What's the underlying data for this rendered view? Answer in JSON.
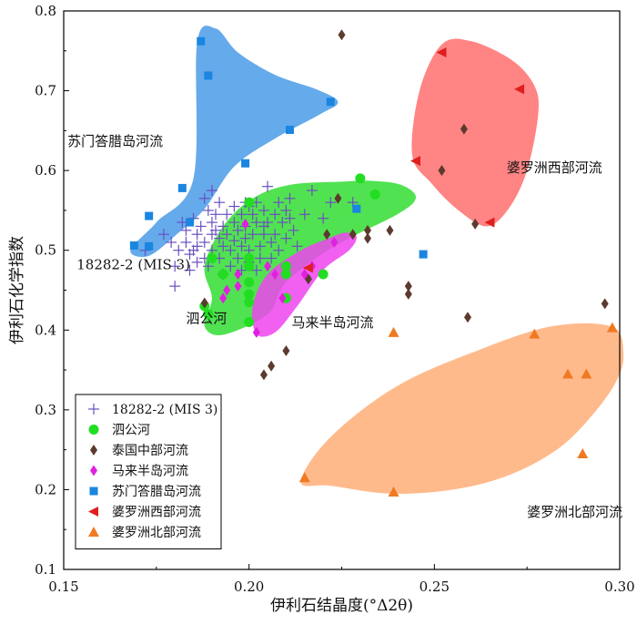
{
  "chart_data": {
    "type": "scatter",
    "title": "",
    "xlabel": "伊利石结晶度(°Δ2θ)",
    "ylabel": "伊利石化学指数",
    "xlim": [
      0.15,
      0.3
    ],
    "ylim": [
      0.1,
      0.8
    ],
    "x_ticks": [
      "0.15",
      "0.20",
      "0.25",
      "0.30"
    ],
    "y_ticks": [
      "0.1",
      "0.2",
      "0.3",
      "0.4",
      "0.5",
      "0.6",
      "0.7",
      "0.8"
    ],
    "grid": false,
    "legend_position": "bottom-left",
    "regions": [
      {
        "name": "苏门答腊岛河流",
        "label": "苏门答腊岛河流",
        "color": "#4a9be8",
        "label_pos": [
          0.151,
          0.631
        ],
        "polygon": [
          [
            0.168,
            0.5
          ],
          [
            0.175,
            0.535
          ],
          [
            0.185,
            0.59
          ],
          [
            0.186,
            0.76
          ],
          [
            0.191,
            0.778
          ],
          [
            0.197,
            0.748
          ],
          [
            0.207,
            0.72
          ],
          [
            0.218,
            0.702
          ],
          [
            0.224,
            0.686
          ],
          [
            0.219,
            0.67
          ],
          [
            0.207,
            0.64
          ],
          [
            0.196,
            0.605
          ],
          [
            0.188,
            0.552
          ],
          [
            0.181,
            0.522
          ],
          [
            0.173,
            0.493
          ]
        ]
      },
      {
        "name": "泗公河",
        "label": "泗公河",
        "color": "#33dd33",
        "label_pos": [
          0.183,
          0.409
        ],
        "polygon": [
          [
            0.188,
            0.405
          ],
          [
            0.19,
            0.44
          ],
          [
            0.188,
            0.48
          ],
          [
            0.193,
            0.53
          ],
          [
            0.201,
            0.565
          ],
          [
            0.211,
            0.582
          ],
          [
            0.225,
            0.586
          ],
          [
            0.233,
            0.587
          ],
          [
            0.241,
            0.582
          ],
          [
            0.245,
            0.566
          ],
          [
            0.24,
            0.545
          ],
          [
            0.223,
            0.505
          ],
          [
            0.21,
            0.46
          ],
          [
            0.205,
            0.42
          ],
          [
            0.193,
            0.394
          ]
        ]
      },
      {
        "name": "马来半岛河流",
        "label": "马来半岛河流",
        "color": "#ee44ee",
        "label_pos": [
          0.2115,
          0.404
        ],
        "polygon": [
          [
            0.202,
            0.395
          ],
          [
            0.201,
            0.43
          ],
          [
            0.205,
            0.47
          ],
          [
            0.214,
            0.5
          ],
          [
            0.222,
            0.516
          ],
          [
            0.226,
            0.522
          ],
          [
            0.229,
            0.517
          ],
          [
            0.227,
            0.5
          ],
          [
            0.22,
            0.475
          ],
          [
            0.213,
            0.43
          ],
          [
            0.207,
            0.397
          ]
        ]
      },
      {
        "name": "婆罗洲西部河流",
        "label": "婆罗洲西部河流",
        "color": "#ff6f6f",
        "label_pos": [
          0.2695,
          0.598
        ],
        "polygon": [
          [
            0.244,
            0.62
          ],
          [
            0.246,
            0.7
          ],
          [
            0.252,
            0.758
          ],
          [
            0.26,
            0.762
          ],
          [
            0.271,
            0.738
          ],
          [
            0.277,
            0.706
          ],
          [
            0.278,
            0.67
          ],
          [
            0.275,
            0.6
          ],
          [
            0.27,
            0.552
          ],
          [
            0.264,
            0.53
          ],
          [
            0.256,
            0.552
          ],
          [
            0.249,
            0.585
          ]
        ]
      },
      {
        "name": "婆罗洲北部河流",
        "label": "婆罗洲北部河流",
        "color": "#ffae78",
        "label_pos": [
          0.275,
          0.166
        ],
        "polygon": [
          [
            0.214,
            0.21
          ],
          [
            0.222,
            0.205
          ],
          [
            0.238,
            0.195
          ],
          [
            0.255,
            0.2
          ],
          [
            0.27,
            0.218
          ],
          [
            0.283,
            0.25
          ],
          [
            0.292,
            0.29
          ],
          [
            0.299,
            0.335
          ],
          [
            0.301,
            0.37
          ],
          [
            0.298,
            0.404
          ],
          [
            0.282,
            0.405
          ],
          [
            0.262,
            0.375
          ],
          [
            0.24,
            0.33
          ],
          [
            0.222,
            0.266
          ]
        ]
      }
    ],
    "series": [
      {
        "name": "18282-2 (MIS 3)",
        "marker": "plus",
        "color": "#6a4fbf",
        "label": "18282-2 (MIS 3)",
        "label_pos": [
          0.1535,
          0.476
        ],
        "points": [
          [
            0.172,
            0.5
          ],
          [
            0.177,
            0.52
          ],
          [
            0.18,
            0.48
          ],
          [
            0.18,
            0.455
          ],
          [
            0.182,
            0.535
          ],
          [
            0.183,
            0.51
          ],
          [
            0.184,
            0.495
          ],
          [
            0.184,
            0.475
          ],
          [
            0.185,
            0.54
          ],
          [
            0.186,
            0.52
          ],
          [
            0.186,
            0.505
          ],
          [
            0.187,
            0.53
          ],
          [
            0.188,
            0.565
          ],
          [
            0.188,
            0.49
          ],
          [
            0.188,
            0.51
          ],
          [
            0.189,
            0.55
          ],
          [
            0.189,
            0.48
          ],
          [
            0.19,
            0.575
          ],
          [
            0.19,
            0.535
          ],
          [
            0.19,
            0.52
          ],
          [
            0.19,
            0.5
          ],
          [
            0.191,
            0.545
          ],
          [
            0.192,
            0.56
          ],
          [
            0.192,
            0.515
          ],
          [
            0.192,
            0.49
          ],
          [
            0.193,
            0.53
          ],
          [
            0.193,
            0.505
          ],
          [
            0.194,
            0.545
          ],
          [
            0.194,
            0.52
          ],
          [
            0.195,
            0.5
          ],
          [
            0.195,
            0.48
          ],
          [
            0.196,
            0.555
          ],
          [
            0.196,
            0.535
          ],
          [
            0.196,
            0.512
          ],
          [
            0.197,
            0.525
          ],
          [
            0.197,
            0.49
          ],
          [
            0.198,
            0.545
          ],
          [
            0.198,
            0.505
          ],
          [
            0.199,
            0.56
          ],
          [
            0.199,
            0.53
          ],
          [
            0.199,
            0.515
          ],
          [
            0.2,
            0.5
          ],
          [
            0.2,
            0.485
          ],
          [
            0.201,
            0.545
          ],
          [
            0.201,
            0.52
          ],
          [
            0.202,
            0.56
          ],
          [
            0.202,
            0.535
          ],
          [
            0.203,
            0.505
          ],
          [
            0.203,
            0.49
          ],
          [
            0.204,
            0.55
          ],
          [
            0.204,
            0.52
          ],
          [
            0.205,
            0.58
          ],
          [
            0.205,
            0.535
          ],
          [
            0.206,
            0.51
          ],
          [
            0.207,
            0.545
          ],
          [
            0.207,
            0.52
          ],
          [
            0.208,
            0.56
          ],
          [
            0.208,
            0.5
          ],
          [
            0.209,
            0.535
          ],
          [
            0.21,
            0.55
          ],
          [
            0.21,
            0.515
          ],
          [
            0.211,
            0.565
          ],
          [
            0.211,
            0.54
          ],
          [
            0.212,
            0.525
          ],
          [
            0.213,
            0.505
          ],
          [
            0.215,
            0.545
          ],
          [
            0.217,
            0.575
          ],
          [
            0.22,
            0.54
          ],
          [
            0.222,
            0.56
          ],
          [
            0.228,
            0.56
          ],
          [
            0.193,
            0.47
          ],
          [
            0.185,
            0.5
          ],
          [
            0.183,
            0.525
          ],
          [
            0.186,
            0.485
          ],
          [
            0.179,
            0.51
          ],
          [
            0.181,
            0.5
          ],
          [
            0.191,
            0.525
          ],
          [
            0.198,
            0.475
          ],
          [
            0.202,
            0.475
          ],
          [
            0.206,
            0.49
          ],
          [
            0.204,
            0.53
          ],
          [
            0.2,
            0.555
          ]
        ]
      },
      {
        "name": "泗公河",
        "marker": "circle",
        "color": "#22dd22",
        "points": [
          [
            0.188,
            0.43
          ],
          [
            0.189,
            0.42
          ],
          [
            0.19,
            0.49
          ],
          [
            0.193,
            0.47
          ],
          [
            0.2,
            0.56
          ],
          [
            0.2,
            0.49
          ],
          [
            0.2,
            0.48
          ],
          [
            0.2,
            0.46
          ],
          [
            0.2,
            0.445
          ],
          [
            0.2,
            0.435
          ],
          [
            0.2,
            0.41
          ],
          [
            0.21,
            0.48
          ],
          [
            0.21,
            0.47
          ],
          [
            0.21,
            0.44
          ],
          [
            0.22,
            0.47
          ],
          [
            0.23,
            0.59
          ],
          [
            0.234,
            0.57
          ]
        ]
      },
      {
        "name": "泰国中部河流",
        "marker": "diamond",
        "color": "#5c3a2e",
        "points": [
          [
            0.225,
            0.77
          ],
          [
            0.258,
            0.652
          ],
          [
            0.252,
            0.6
          ],
          [
            0.261,
            0.533
          ],
          [
            0.224,
            0.565
          ],
          [
            0.221,
            0.52
          ],
          [
            0.228,
            0.52
          ],
          [
            0.232,
            0.525
          ],
          [
            0.232,
            0.515
          ],
          [
            0.238,
            0.525
          ],
          [
            0.188,
            0.434
          ],
          [
            0.216,
            0.464
          ],
          [
            0.243,
            0.455
          ],
          [
            0.243,
            0.445
          ],
          [
            0.259,
            0.416
          ],
          [
            0.296,
            0.433
          ],
          [
            0.21,
            0.374
          ],
          [
            0.206,
            0.355
          ],
          [
            0.204,
            0.344
          ]
        ]
      },
      {
        "name": "马来半岛河流",
        "marker": "diamond",
        "color": "#e020e0",
        "points": [
          [
            0.199,
            0.533
          ],
          [
            0.202,
            0.397
          ],
          [
            0.205,
            0.48
          ],
          [
            0.207,
            0.47
          ],
          [
            0.209,
            0.44
          ],
          [
            0.215,
            0.47
          ],
          [
            0.217,
            0.48
          ],
          [
            0.223,
            0.51
          ],
          [
            0.197,
            0.455
          ],
          [
            0.193,
            0.44
          ],
          [
            0.194,
            0.45
          ],
          [
            0.197,
            0.47
          ]
        ]
      },
      {
        "name": "苏门答腊岛河流",
        "marker": "square",
        "color": "#1a86e0",
        "points": [
          [
            0.187,
            0.762
          ],
          [
            0.189,
            0.719
          ],
          [
            0.211,
            0.651
          ],
          [
            0.199,
            0.609
          ],
          [
            0.182,
            0.578
          ],
          [
            0.173,
            0.543
          ],
          [
            0.184,
            0.535
          ],
          [
            0.169,
            0.506
          ],
          [
            0.173,
            0.505
          ],
          [
            0.229,
            0.552
          ],
          [
            0.222,
            0.686
          ],
          [
            0.247,
            0.495
          ]
        ]
      },
      {
        "name": "婆罗洲西部河流",
        "marker": "triangle-left",
        "color": "#e01e1e",
        "points": [
          [
            0.252,
            0.748
          ],
          [
            0.273,
            0.702
          ],
          [
            0.245,
            0.612
          ],
          [
            0.265,
            0.535
          ],
          [
            0.216,
            0.478
          ]
        ]
      },
      {
        "name": "婆罗洲北部河流",
        "marker": "triangle-up",
        "color": "#f07a22",
        "points": [
          [
            0.239,
            0.397
          ],
          [
            0.277,
            0.395
          ],
          [
            0.298,
            0.403
          ],
          [
            0.286,
            0.345
          ],
          [
            0.291,
            0.345
          ],
          [
            0.29,
            0.245
          ],
          [
            0.215,
            0.215
          ],
          [
            0.239,
            0.197
          ]
        ]
      }
    ]
  }
}
